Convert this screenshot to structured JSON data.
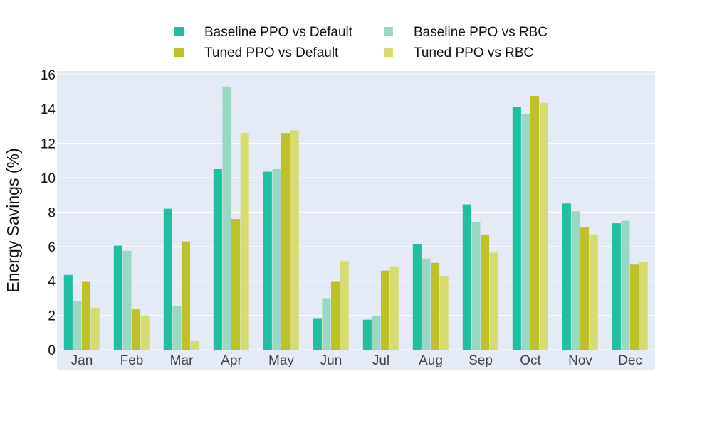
{
  "chart_data": {
    "type": "bar",
    "title": "",
    "xlabel": "",
    "ylabel": "Energy Savings (%)",
    "ylim": [
      0,
      16.2
    ],
    "yticks": [
      0,
      2,
      4,
      6,
      8,
      10,
      12,
      14,
      16
    ],
    "grid": true,
    "legend_position": "top-center",
    "categories": [
      "Jan",
      "Feb",
      "Mar",
      "Apr",
      "May",
      "Jun",
      "Jul",
      "Aug",
      "Sep",
      "Oct",
      "Nov",
      "Dec"
    ],
    "series": [
      {
        "name": "Baseline PPO vs Default",
        "color": "#20bf9f",
        "values": [
          4.35,
          6.05,
          8.2,
          10.5,
          10.35,
          1.8,
          1.75,
          6.15,
          8.45,
          14.1,
          8.5,
          7.35
        ]
      },
      {
        "name": "Baseline PPO vs RBC",
        "color": "#99d8c2",
        "values": [
          2.85,
          5.75,
          2.55,
          15.3,
          10.5,
          3.0,
          2.0,
          5.3,
          7.4,
          13.7,
          8.05,
          7.5
        ]
      },
      {
        "name": "Tuned PPO vs Default",
        "color": "#bfc128",
        "values": [
          3.95,
          2.35,
          6.3,
          7.6,
          12.6,
          3.95,
          4.6,
          5.05,
          6.7,
          14.75,
          7.15,
          4.95
        ]
      },
      {
        "name": "Tuned PPO vs RBC",
        "color": "#d6dc70",
        "values": [
          2.45,
          2.0,
          0.5,
          12.6,
          12.75,
          5.15,
          4.85,
          4.25,
          5.65,
          14.35,
          6.7,
          5.1
        ]
      }
    ]
  },
  "style": {
    "plot_bg": "#e5ebf6",
    "grid_color": "#ffffff",
    "text_color": "#2a3f5f",
    "tick_color": "#444444"
  }
}
